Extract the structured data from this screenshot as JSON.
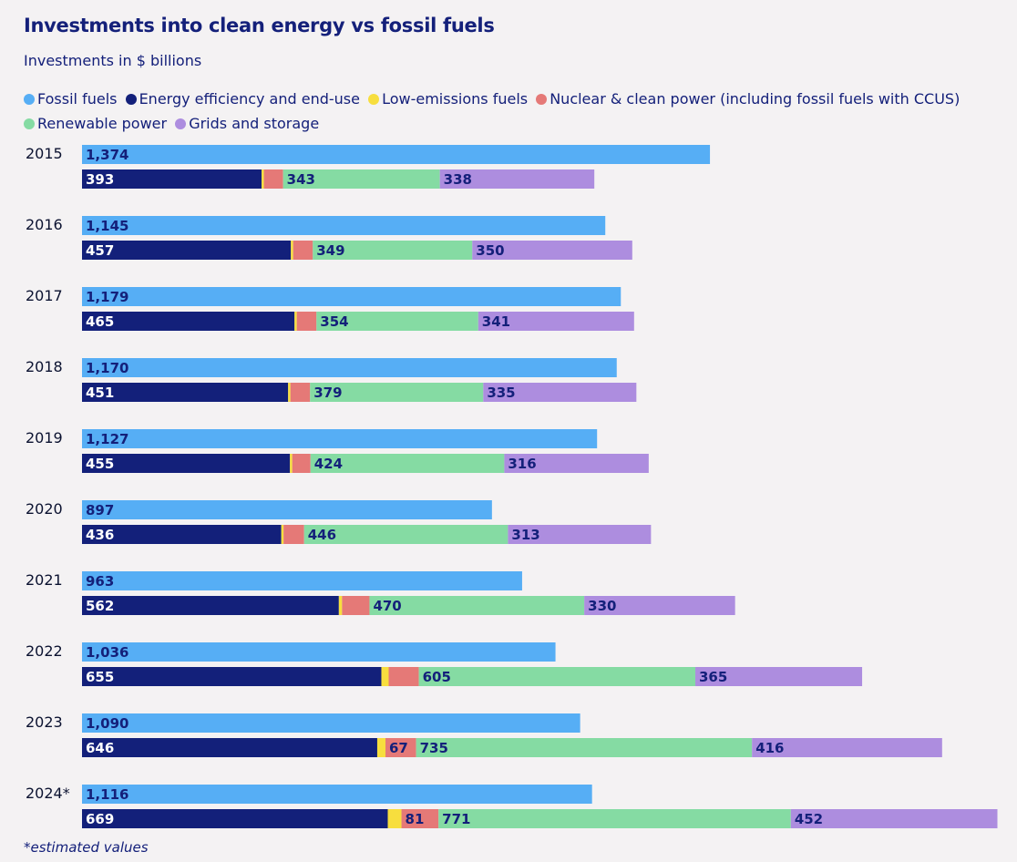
{
  "title": "Investments into clean energy vs fossil fuels",
  "subtitle": "Investments in $ billions",
  "footnote": "*estimated values",
  "legend": [
    {
      "label": "Fossil fuels",
      "color": "#56aef5"
    },
    {
      "label": "Energy efficiency and end-use",
      "color": "#13207a"
    },
    {
      "label": "Low-emissions fuels",
      "color": "#f7de3e"
    },
    {
      "label": "Nuclear & clean power (including fossil fuels with CCUS)",
      "color": "#e57977"
    },
    {
      "label": "Renewable power",
      "color": "#85dba3"
    },
    {
      "label": "Grids and storage",
      "color": "#ad8ddf"
    }
  ],
  "chart_data": {
    "type": "bar",
    "orientation": "horizontal",
    "title": "Investments into clean energy vs fossil fuels",
    "subtitle": "Investments in $ billions",
    "categories": [
      "2015",
      "2016",
      "2017",
      "2018",
      "2019",
      "2020",
      "2021",
      "2022",
      "2023",
      "2024*"
    ],
    "fossil_series": {
      "name": "Fossil fuels",
      "values": [
        1374,
        1145,
        1179,
        1170,
        1127,
        897,
        963,
        1036,
        1090,
        1116
      ]
    },
    "clean_stack": [
      {
        "name": "Energy efficiency and end-use",
        "values": [
          393,
          457,
          465,
          451,
          455,
          436,
          562,
          655,
          646,
          669
        ],
        "labeled": [
          true,
          true,
          true,
          true,
          true,
          true,
          true,
          true,
          true,
          true
        ]
      },
      {
        "name": "Low-emissions fuels",
        "values": [
          5,
          5,
          5,
          5,
          5,
          5,
          7,
          16,
          18,
          30
        ],
        "labeled": [
          false,
          false,
          false,
          false,
          false,
          false,
          false,
          false,
          false,
          false
        ]
      },
      {
        "name": "Nuclear & clean power (including fossil fuels with CCUS)",
        "values": [
          42,
          43,
          43,
          43,
          40,
          45,
          60,
          66,
          67,
          81
        ],
        "labeled": [
          false,
          false,
          false,
          false,
          false,
          false,
          false,
          false,
          true,
          true
        ]
      },
      {
        "name": "Renewable power",
        "values": [
          343,
          349,
          354,
          379,
          424,
          446,
          470,
          605,
          735,
          771
        ],
        "labeled": [
          true,
          true,
          true,
          true,
          true,
          true,
          true,
          true,
          true,
          true
        ]
      },
      {
        "name": "Grids and storage",
        "values": [
          338,
          350,
          341,
          335,
          316,
          313,
          330,
          365,
          416,
          452
        ],
        "labeled": [
          true,
          true,
          true,
          true,
          true,
          true,
          true,
          true,
          true,
          true
        ]
      }
    ],
    "xlim": [
      0,
      2000
    ],
    "grid": false,
    "legend_position": "top"
  }
}
